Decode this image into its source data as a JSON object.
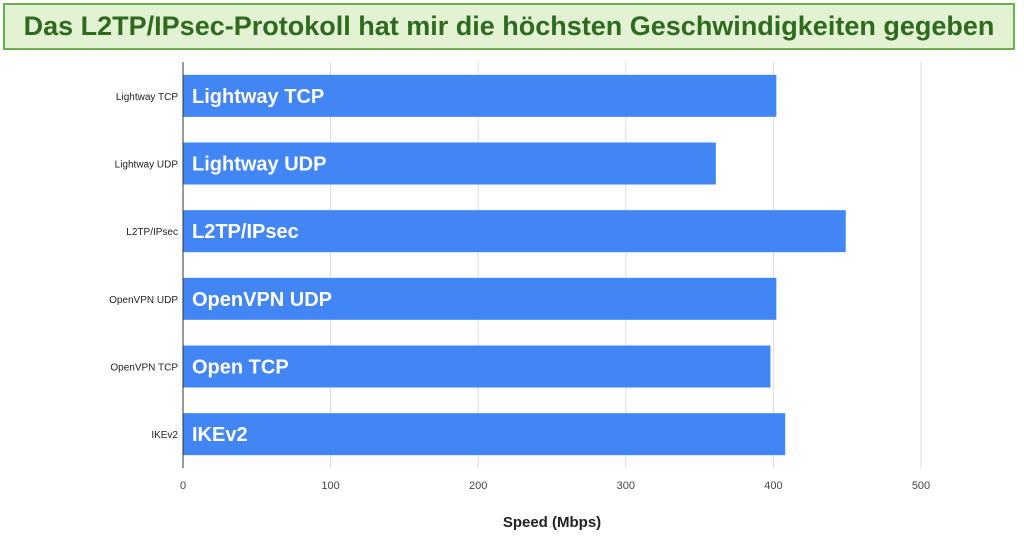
{
  "banner": {
    "text": "Das L2TP/IPsec-Protokoll hat mir die höchsten Geschwindigkeiten gegeben"
  },
  "colors": {
    "bar": "#4285f4",
    "bar_text": "#ffffff",
    "banner_bg": "#e3f2d3",
    "banner_border": "#6ab04c",
    "banner_text": "#2e6b1f",
    "grid": "#dddddd",
    "axis": "#333333"
  },
  "chart_data": {
    "type": "bar",
    "orientation": "horizontal",
    "categories": [
      "Lightway TCP",
      "Lightway UDP",
      "L2TP/IPsec",
      "OpenVPN UDP",
      "OpenVPN TCP",
      "IKEv2"
    ],
    "bar_labels": [
      "Lightway TCP",
      "Lightway UDP",
      "L2TP/IPsec",
      "OpenVPN UDP",
      "Open TCP",
      "IKEv2"
    ],
    "values": [
      402,
      361,
      449,
      402,
      398,
      408
    ],
    "xlabel": "Speed (Mbps)",
    "ylabel": "",
    "xlim": [
      0,
      500
    ],
    "xticks": [
      0,
      100,
      200,
      300,
      400,
      500
    ],
    "grid": true,
    "legend": "none"
  }
}
